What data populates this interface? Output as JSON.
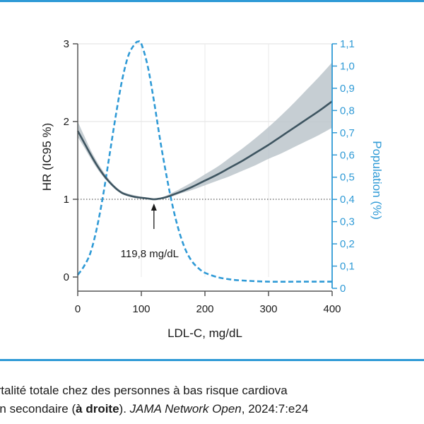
{
  "chart_data": {
    "type": "line",
    "xlabel": "LDL-C, mg/dL",
    "ylabel_left": "HR (IC95 %)",
    "ylabel_right": "Population (%)",
    "x_ticks": [
      "0",
      "100",
      "200",
      "300",
      "400"
    ],
    "y_left_ticks": [
      "0",
      "1",
      "2",
      "3"
    ],
    "y_right_ticks": [
      "0",
      "0,1",
      "0,2",
      "0,3",
      "0,4",
      "0,5",
      "0,6",
      "0,7",
      "0,8",
      "0,9",
      "1,0",
      "1,1"
    ],
    "xlim": [
      0,
      400
    ],
    "ylim_left": [
      0,
      3
    ],
    "ylim_right": [
      0,
      1.1
    ],
    "reference_line_hr": 1,
    "series": [
      {
        "axis": "left",
        "style": "solid",
        "color": "#3e5561",
        "x": [
          0,
          10,
          20,
          30,
          40,
          50,
          60,
          70,
          80,
          90,
          100,
          110,
          119.8,
          130,
          140,
          150,
          160,
          180,
          200,
          220,
          240,
          260,
          280,
          300,
          320,
          340,
          360,
          380,
          400
        ],
        "y": [
          1.88,
          1.73,
          1.58,
          1.44,
          1.32,
          1.22,
          1.14,
          1.08,
          1.05,
          1.03,
          1.02,
          1.01,
          1.0,
          1.01,
          1.03,
          1.06,
          1.09,
          1.16,
          1.24,
          1.32,
          1.41,
          1.5,
          1.6,
          1.7,
          1.81,
          1.92,
          2.03,
          2.14,
          2.26
        ],
        "ci_lower": [
          1.8,
          1.67,
          1.53,
          1.4,
          1.29,
          1.2,
          1.12,
          1.07,
          1.04,
          1.02,
          1.01,
          1.0,
          0.99,
          1.0,
          1.02,
          1.04,
          1.07,
          1.12,
          1.18,
          1.24,
          1.3,
          1.37,
          1.44,
          1.52,
          1.59,
          1.67,
          1.75,
          1.83,
          1.92
        ],
        "ci_upper": [
          2.0,
          1.82,
          1.64,
          1.49,
          1.36,
          1.25,
          1.16,
          1.1,
          1.07,
          1.05,
          1.03,
          1.02,
          1.01,
          1.02,
          1.05,
          1.09,
          1.13,
          1.22,
          1.32,
          1.42,
          1.54,
          1.66,
          1.79,
          1.93,
          2.08,
          2.24,
          2.41,
          2.58,
          2.76
        ]
      },
      {
        "axis": "right",
        "style": "dashed",
        "color": "#2f9ad6",
        "x": [
          0,
          10,
          20,
          30,
          40,
          50,
          60,
          70,
          80,
          90,
          95,
          100,
          110,
          120,
          130,
          140,
          150,
          160,
          170,
          180,
          190,
          200,
          220,
          240,
          260,
          300,
          350,
          400
        ],
        "y": [
          0.06,
          0.1,
          0.16,
          0.27,
          0.42,
          0.6,
          0.78,
          0.94,
          1.05,
          1.1,
          1.11,
          1.1,
          1.0,
          0.84,
          0.66,
          0.5,
          0.36,
          0.25,
          0.17,
          0.12,
          0.09,
          0.07,
          0.05,
          0.04,
          0.035,
          0.03,
          0.03,
          0.03
        ]
      }
    ],
    "annotation": {
      "text": "119,8 mg/dL",
      "x": 119.8,
      "hr": 1.0
    }
  },
  "caption": {
    "line1": "mortalité totale chez des personnes à bas risque cardiova",
    "line2_a": "ntion secondaire (",
    "line2_bold": "à droite",
    "line2_b": "). ",
    "line2_italic": "JAMA Network Open",
    "line2_c": ", 2024:7:e24"
  }
}
